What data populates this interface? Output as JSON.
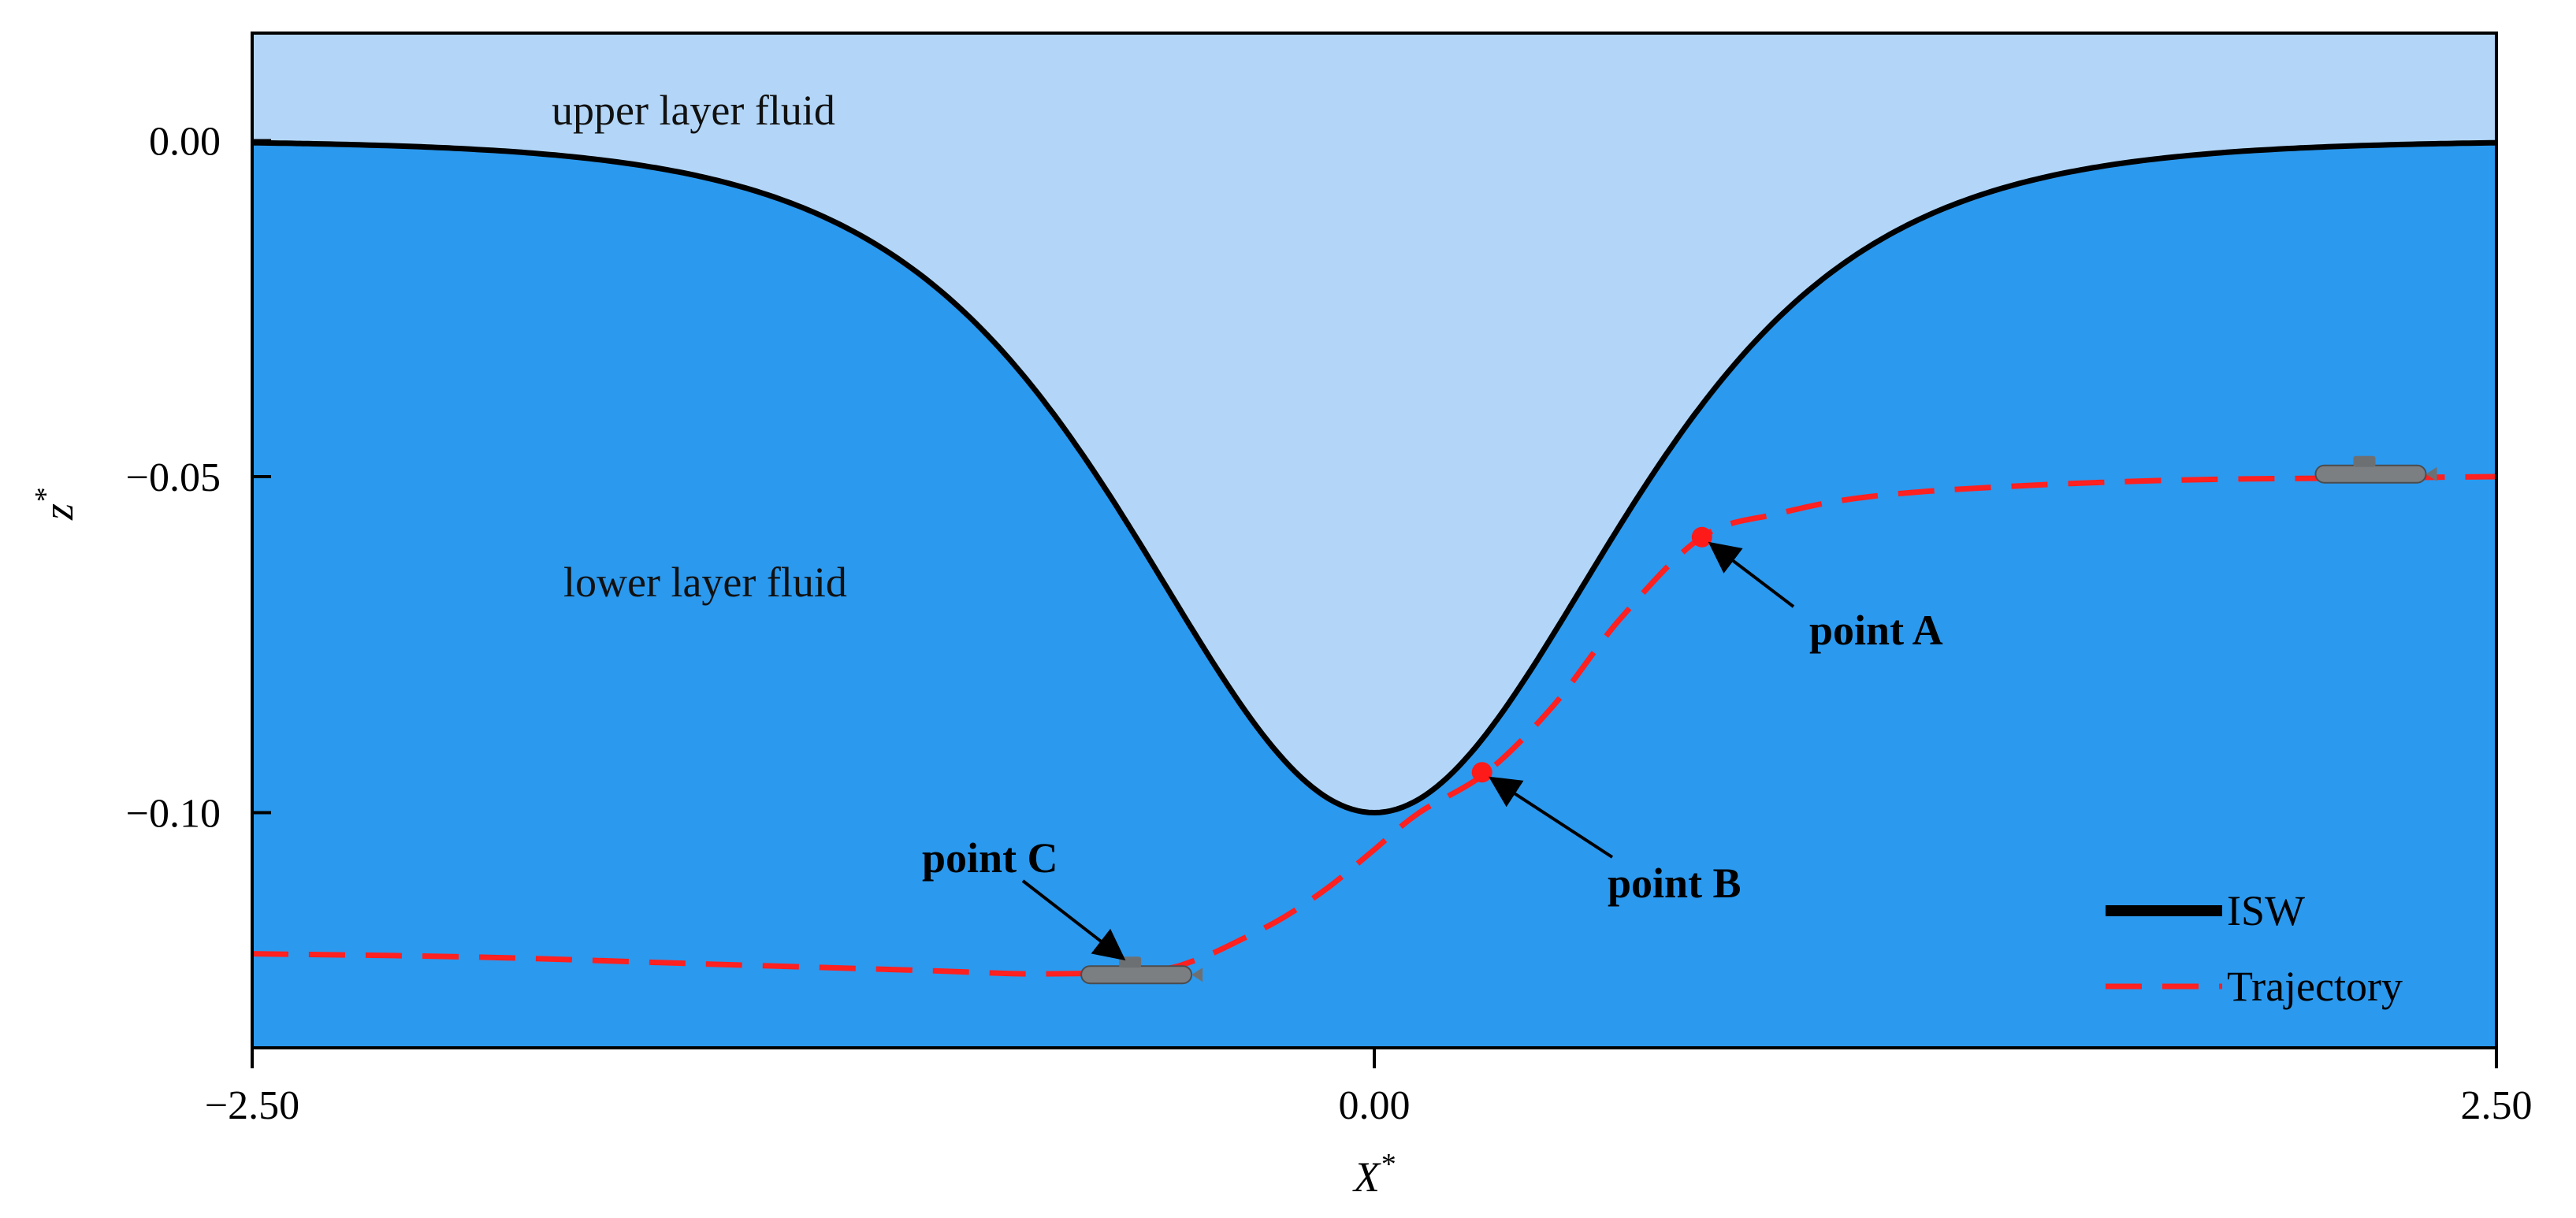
{
  "chart_data": {
    "type": "line",
    "title": "",
    "xlabel": "X",
    "xlabel_sup": "*",
    "ylabel": "z",
    "ylabel_sup": "*",
    "xlim": [
      -2.5,
      2.5
    ],
    "ylim": [
      -0.135,
      0.016
    ],
    "x_ticks": [
      -2.5,
      0.0,
      2.5
    ],
    "x_tick_labels": [
      "−2.50",
      "0.00",
      "2.50"
    ],
    "y_ticks": [
      0.0,
      -0.05,
      -0.1
    ],
    "y_tick_labels": [
      "0.00",
      "−0.05",
      "−0.10"
    ],
    "grid": false,
    "legend_position": "bottom-right",
    "series": [
      {
        "name": "ISW",
        "style": "solid",
        "color": "#000000",
        "amplitude": -0.1,
        "x": [
          -2.5,
          -2.25,
          -2.0,
          -1.75,
          -1.5,
          -1.25,
          -1.0,
          -0.75,
          -0.5,
          -0.25,
          0.0,
          0.25,
          0.5,
          0.75,
          1.0,
          1.25,
          1.5,
          1.75,
          2.0,
          2.25,
          2.5
        ],
        "y": [
          -0.001,
          -0.002,
          -0.004,
          -0.007,
          -0.012,
          -0.021,
          -0.034,
          -0.053,
          -0.075,
          -0.094,
          -0.1,
          -0.094,
          -0.075,
          -0.053,
          -0.034,
          -0.021,
          -0.012,
          -0.007,
          -0.004,
          -0.002,
          -0.001
        ]
      },
      {
        "name": "Trajectory",
        "style": "dashed",
        "color": "#ff2020",
        "x": [
          -2.5,
          -2.0,
          -1.5,
          -1.0,
          -0.75,
          -0.5,
          -0.4,
          -0.3,
          -0.2,
          -0.1,
          0.0,
          0.1,
          0.25,
          0.4,
          0.55,
          0.73,
          0.9,
          1.1,
          1.4,
          1.8,
          2.2,
          2.5
        ],
        "y": [
          -0.121,
          -0.1215,
          -0.1225,
          -0.1235,
          -0.124,
          -0.1235,
          -0.122,
          -0.119,
          -0.1155,
          -0.111,
          -0.1055,
          -0.1,
          -0.094,
          -0.084,
          -0.071,
          -0.059,
          -0.0555,
          -0.053,
          -0.0515,
          -0.0505,
          -0.0502,
          -0.05
        ]
      }
    ],
    "points": [
      {
        "label": "point A",
        "x": 0.73,
        "y": -0.059
      },
      {
        "label": "point B",
        "x": 0.24,
        "y": -0.094
      },
      {
        "label": "point C",
        "x": -0.53,
        "y": -0.124
      }
    ],
    "regions": [
      {
        "label": "upper layer fluid",
        "color": "#b3d6f8"
      },
      {
        "label": "lower layer fluid",
        "color": "#2b99ee"
      }
    ],
    "submarines": [
      {
        "x": -0.53,
        "y": -0.124
      },
      {
        "x": 2.22,
        "y": -0.0495
      }
    ]
  }
}
